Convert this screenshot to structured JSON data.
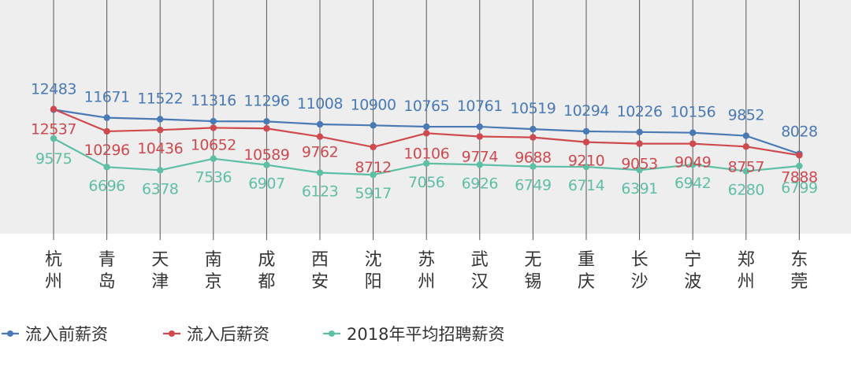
{
  "chart_data": {
    "type": "line",
    "title": "",
    "xlabel": "",
    "ylabel": "",
    "ylim": [
      0,
      14000
    ],
    "grid": "vertical",
    "legend_position": "bottom-left",
    "categories": [
      [
        "杭",
        "州"
      ],
      [
        "青",
        "岛"
      ],
      [
        "天",
        "津"
      ],
      [
        "南",
        "京"
      ],
      [
        "成",
        "都"
      ],
      [
        "西",
        "安"
      ],
      [
        "沈",
        "阳"
      ],
      [
        "苏",
        "州"
      ],
      [
        "武",
        "汉"
      ],
      [
        "无",
        "锡"
      ],
      [
        "重",
        "庆"
      ],
      [
        "长",
        "沙"
      ],
      [
        "宁",
        "波"
      ],
      [
        "郑",
        "州"
      ],
      [
        "东",
        "莞"
      ]
    ],
    "series": [
      {
        "name": "流入前薪资",
        "color": "#4a7ab5",
        "values": [
          12483,
          11671,
          11522,
          11316,
          11296,
          11008,
          10900,
          10765,
          10761,
          10519,
          10294,
          10226,
          10156,
          9852,
          8028
        ]
      },
      {
        "name": "流入后薪资",
        "color": "#cf4a4f",
        "values": [
          12537,
          10296,
          10436,
          10652,
          10589,
          9762,
          8712,
          10106,
          9774,
          9688,
          9210,
          9053,
          9049,
          8757,
          7888
        ]
      },
      {
        "name": "2018年平均招聘薪资",
        "color": "#5ebfa5",
        "values": [
          9575,
          6696,
          6378,
          7536,
          6907,
          6123,
          5917,
          7056,
          6926,
          6749,
          6714,
          6391,
          6942,
          6280,
          6799
        ]
      }
    ]
  }
}
